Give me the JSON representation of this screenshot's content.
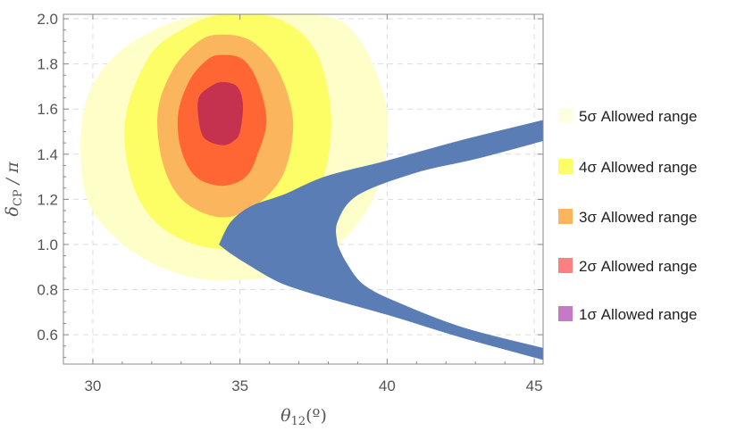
{
  "chart_data": {
    "type": "contour",
    "xlabel": "θ12(º)",
    "xlabel_parts": {
      "symbol": "θ",
      "sub": "12",
      "unit": "(º)"
    },
    "ylabel": "δCP / π",
    "ylabel_parts": {
      "symbol": "δ",
      "sub": "CP",
      "rest": " / π"
    },
    "xlim": [
      29,
      45.3
    ],
    "ylim": [
      0.47,
      2.02
    ],
    "xticks": [
      "30",
      "35",
      "40",
      "45"
    ],
    "yticks": [
      "0.6",
      "0.8",
      "1.0",
      "1.2",
      "1.4",
      "1.6",
      "1.8",
      "2.0"
    ],
    "xtick_values": [
      30,
      35,
      40,
      45
    ],
    "ytick_values": [
      0.6,
      0.8,
      1.0,
      1.2,
      1.4,
      1.6,
      1.8,
      2.0
    ],
    "grid": true,
    "legend_position": "right",
    "legend": [
      {
        "label": "5σ Allowed range",
        "color": "#fefee0"
      },
      {
        "label": "4σ Allowed range",
        "color": "#fdfd66"
      },
      {
        "label": "3σ Allowed range",
        "color": "#fbb55c"
      },
      {
        "label": "2σ Allowed range",
        "color": "#fc8080"
      },
      {
        "label": "1σ Allowed range",
        "color": "#c47ac4"
      }
    ],
    "regions": [
      {
        "level": "5σ",
        "color": "#fefec8",
        "boundary": [
          [
            34.4,
            0.84
          ],
          [
            32.3,
            0.9
          ],
          [
            30.6,
            1.05
          ],
          [
            29.7,
            1.25
          ],
          [
            29.7,
            1.6
          ],
          [
            30.7,
            1.83
          ],
          [
            32.6,
            1.98
          ],
          [
            34.4,
            2.02
          ],
          [
            37.4,
            2.02
          ],
          [
            38.8,
            1.95
          ],
          [
            39.8,
            1.7
          ],
          [
            40.0,
            1.45
          ],
          [
            39.3,
            1.15
          ],
          [
            37.3,
            0.9
          ]
        ]
      },
      {
        "level": "4σ",
        "color": "#fdfd66",
        "boundary": [
          [
            34.4,
            0.98
          ],
          [
            32.5,
            1.06
          ],
          [
            31.4,
            1.25
          ],
          [
            31.1,
            1.55
          ],
          [
            31.9,
            1.83
          ],
          [
            33.0,
            1.95
          ],
          [
            34.4,
            2.02
          ],
          [
            36.3,
            2.0
          ],
          [
            37.6,
            1.85
          ],
          [
            38.1,
            1.55
          ],
          [
            37.7,
            1.25
          ],
          [
            36.5,
            1.06
          ]
        ]
      },
      {
        "level": "3σ",
        "color": "#fbb55c",
        "boundary": [
          [
            34.4,
            1.12
          ],
          [
            33.1,
            1.19
          ],
          [
            32.4,
            1.35
          ],
          [
            32.2,
            1.58
          ],
          [
            32.7,
            1.77
          ],
          [
            33.6,
            1.9
          ],
          [
            34.4,
            1.93
          ],
          [
            35.4,
            1.9
          ],
          [
            36.3,
            1.77
          ],
          [
            36.8,
            1.55
          ],
          [
            36.5,
            1.32
          ],
          [
            35.6,
            1.18
          ]
        ]
      },
      {
        "level": "2σ",
        "color": "#ff6633",
        "boundary": [
          [
            34.4,
            1.26
          ],
          [
            33.5,
            1.3
          ],
          [
            33.0,
            1.42
          ],
          [
            32.9,
            1.58
          ],
          [
            33.3,
            1.73
          ],
          [
            33.9,
            1.82
          ],
          [
            34.4,
            1.84
          ],
          [
            35.1,
            1.82
          ],
          [
            35.6,
            1.72
          ],
          [
            35.9,
            1.55
          ],
          [
            35.6,
            1.4
          ],
          [
            35.2,
            1.3
          ]
        ]
      },
      {
        "level": "1σ",
        "color": "#c4324f",
        "boundary": [
          [
            34.4,
            1.44
          ],
          [
            33.8,
            1.47
          ],
          [
            33.6,
            1.55
          ],
          [
            33.6,
            1.65
          ],
          [
            34.0,
            1.7
          ],
          [
            34.4,
            1.72
          ],
          [
            34.9,
            1.7
          ],
          [
            35.1,
            1.62
          ],
          [
            35.0,
            1.5
          ],
          [
            34.8,
            1.46
          ]
        ]
      }
    ],
    "band": {
      "color": "#5b7db6",
      "outer_upper": [
        [
          34.3,
          1.0
        ],
        [
          34.7,
          1.1
        ],
        [
          35.4,
          1.17
        ],
        [
          36.5,
          1.22
        ],
        [
          37.9,
          1.3
        ],
        [
          40.0,
          1.37
        ],
        [
          42.5,
          1.46
        ],
        [
          45.3,
          1.55
        ]
      ],
      "inner_upper": [
        [
          45.3,
          1.46
        ],
        [
          43.0,
          1.38
        ],
        [
          41.0,
          1.32
        ],
        [
          39.0,
          1.22
        ],
        [
          38.3,
          1.1
        ],
        [
          38.3,
          1.0
        ]
      ],
      "inner_lower": [
        [
          38.3,
          1.0
        ],
        [
          38.6,
          0.92
        ],
        [
          39.2,
          0.82
        ],
        [
          40.4,
          0.74
        ],
        [
          42.6,
          0.63
        ],
        [
          45.3,
          0.54
        ]
      ],
      "outer_lower": [
        [
          45.3,
          0.49
        ],
        [
          42.5,
          0.59
        ],
        [
          40.0,
          0.69
        ],
        [
          37.8,
          0.77
        ],
        [
          36.4,
          0.83
        ],
        [
          35.3,
          0.91
        ],
        [
          34.7,
          0.96
        ],
        [
          34.3,
          1.0
        ]
      ]
    }
  }
}
